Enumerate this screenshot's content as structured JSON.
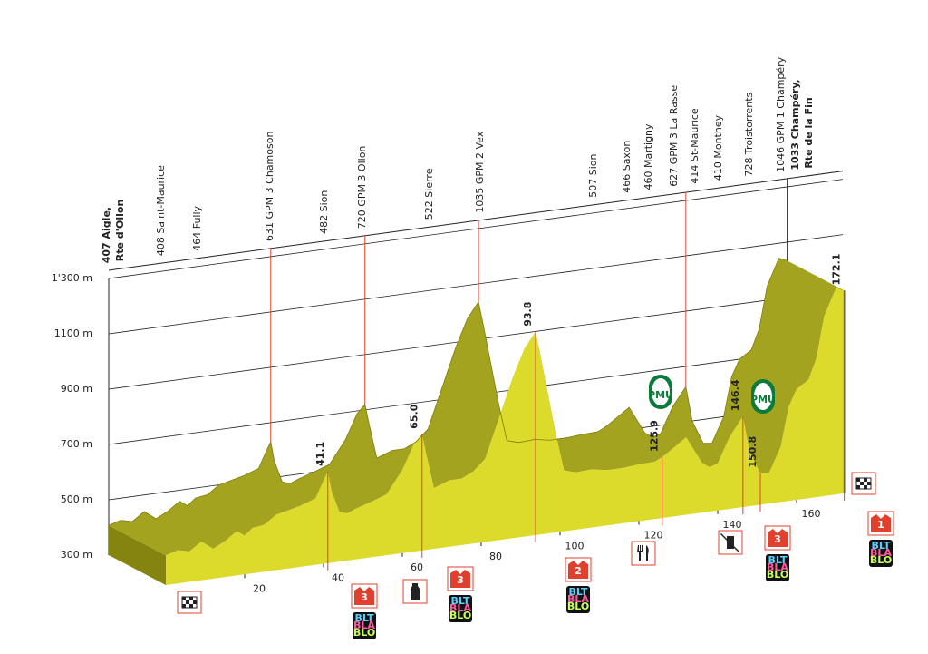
{
  "chart_data": {
    "type": "profile",
    "x": [
      0,
      3,
      6,
      9,
      12,
      15,
      18,
      20,
      22,
      25,
      28,
      31,
      34,
      36,
      38,
      40,
      41.1,
      42,
      44,
      46,
      48,
      52,
      56,
      60,
      63,
      65,
      66,
      68,
      70,
      72,
      75,
      78,
      81,
      84,
      88,
      91,
      93.8,
      95,
      97,
      99,
      101,
      104,
      108,
      112,
      116,
      120,
      124,
      125.9,
      128,
      132,
      136,
      138,
      140,
      143,
      146.4,
      148,
      150.8,
      153,
      156,
      158,
      160,
      163,
      165,
      167,
      170,
      172.1
    ],
    "values": [
      407,
      420,
      410,
      440,
      408,
      430,
      460,
      440,
      464,
      470,
      500,
      510,
      520,
      530,
      540,
      600,
      631,
      560,
      480,
      470,
      482,
      500,
      520,
      600,
      690,
      720,
      650,
      520,
      530,
      540,
      540,
      560,
      600,
      720,
      880,
      980,
      1035,
      950,
      800,
      650,
      520,
      507,
      510,
      500,
      500,
      505,
      507,
      520,
      540,
      580,
      480,
      460,
      470,
      560,
      627,
      500,
      414,
      410,
      500,
      640,
      700,
      728,
      800,
      950,
      1046,
      1033
    ],
    "xlim": [
      0,
      172.1
    ],
    "ylim": [
      300,
      1300
    ],
    "yticks": [
      {
        "value": 300,
        "label": "300 m"
      },
      {
        "value": 500,
        "label": "500 m"
      },
      {
        "value": 700,
        "label": "700 m"
      },
      {
        "value": 900,
        "label": "900 m"
      },
      {
        "value": 1100,
        "label": "1100 m"
      },
      {
        "value": 1300,
        "label": "1'300 m"
      }
    ],
    "xticks": [
      20,
      40,
      60,
      80,
      100,
      120,
      140,
      160
    ],
    "grid": true,
    "km_markers": [
      41.1,
      {
        "value": 65,
        "label": "65.0"
      },
      93.8,
      125.9,
      146.4,
      150.8,
      172.1
    ],
    "places": [
      {
        "text": [
          "407 Aigle,",
          "Rte d'Ollon"
        ],
        "bold": true
      },
      {
        "text": [
          "408 Saint-Maurice"
        ]
      },
      {
        "text": [
          "464 Fully"
        ]
      },
      {
        "text": [
          "631 GPM 3 Chamoson"
        ]
      },
      {
        "text": [
          "482 Sion"
        ]
      },
      {
        "text": [
          "720 GPM 3 Ollon"
        ]
      },
      {
        "text": [
          "522 Sierre"
        ]
      },
      {
        "text": [
          "1035 GPM 2 Vex"
        ]
      },
      {
        "text": [
          "507 Sion"
        ]
      },
      {
        "text": [
          "466 Saxon"
        ]
      },
      {
        "text": [
          "460 Martigny"
        ]
      },
      {
        "text": [
          "627 GPM 3 La Rasse"
        ]
      },
      {
        "text": [
          "414 St-Maurice"
        ]
      },
      {
        "text": [
          "410 Monthey"
        ]
      },
      {
        "text": [
          "728 Troistorrents"
        ]
      },
      {
        "text": [
          "1046 GPM 1 Champéry"
        ]
      },
      {
        "text": [
          "1033 Champéry,",
          "Rte de la Fin"
        ],
        "bold": true
      }
    ],
    "climb_categories": [
      "3",
      "3",
      "2",
      "3",
      "1"
    ],
    "logo": [
      "BLT",
      "BLA",
      "BLO"
    ],
    "sponsor": "PMU",
    "colors": {
      "top": "#a4a31f",
      "front": "#dcdb2c",
      "side": "#85840f",
      "gpm": "#e2402e",
      "grid": "#222222"
    }
  }
}
